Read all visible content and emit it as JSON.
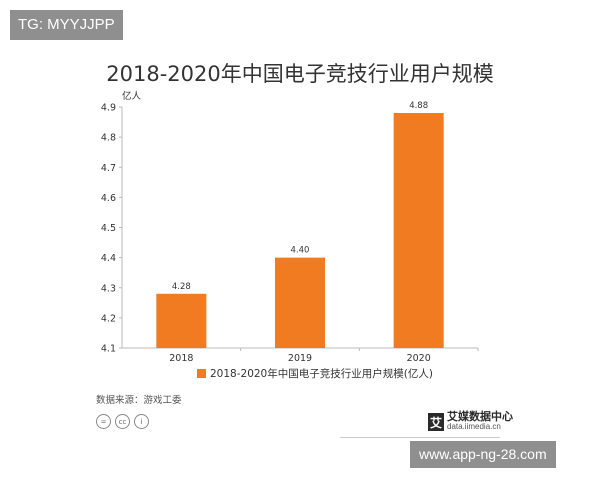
{
  "watermark_top": "TG: MYYJJPP",
  "watermark_bottom": "www.app-ng-28.com",
  "source": "数据来源：游戏工委",
  "brand": {
    "name": "艾媒数据中心",
    "url": "data.iimedia.cn",
    "logo_char": "艾"
  },
  "cc_icons": [
    "=",
    "cc",
    "i"
  ],
  "colors": {
    "bar": "#f07b21",
    "axis": "#bbbbbb",
    "text": "#333333"
  },
  "chart_data": {
    "type": "bar",
    "title": "2018-2020年中国电子竞技行业用户规模",
    "categories": [
      "2018",
      "2019",
      "2020"
    ],
    "series": [
      {
        "name": "2018-2020年中国电子竞技行业用户规模(亿人)",
        "values": [
          4.28,
          4.4,
          4.88
        ]
      }
    ],
    "value_labels": [
      "4.28",
      "4.40",
      "4.88"
    ],
    "ylabel": "亿人",
    "ylim": [
      4.1,
      4.9
    ],
    "yticks": [
      "4.1",
      "4.2",
      "4.3",
      "4.4",
      "4.5",
      "4.6",
      "4.7",
      "4.8",
      "4.9"
    ],
    "legend_position": "bottom",
    "grid": false
  }
}
